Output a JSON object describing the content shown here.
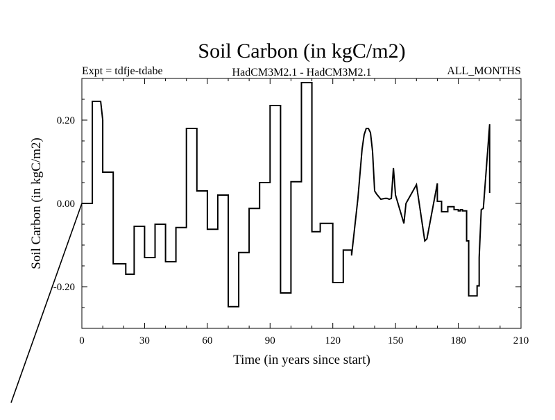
{
  "chart_data": {
    "type": "line",
    "title": "Soil Carbon (in kgC/m2)",
    "subtitle_left": "Expt = tdfje-tdabe",
    "subtitle_center": "HadCM3M2.1 - HadCM3M2.1",
    "subtitle_right": "ALL_MONTHS",
    "xlabel": "Time (in years since start)",
    "ylabel": "Soil Carbon (in kgC/m2)",
    "xlim": [
      0,
      210
    ],
    "ylim": [
      -0.3,
      0.3
    ],
    "xticks": [
      0,
      30,
      60,
      90,
      120,
      150,
      180,
      210
    ],
    "xtick_labels": [
      "0",
      "30",
      "60",
      "90",
      "120",
      "150",
      "180",
      "210"
    ],
    "yticks": [
      -0.2,
      0.0,
      0.2
    ],
    "ytick_labels": [
      "-0.20",
      "0.00",
      "0.20"
    ],
    "series": [
      {
        "name": "Soil Carbon",
        "x": [
          0,
          4,
          5,
          5,
          9,
          10,
          10,
          15,
          15,
          21,
          21,
          25,
          25,
          30,
          30,
          35,
          35,
          40,
          40,
          45,
          45,
          50,
          50,
          55,
          55,
          60,
          60,
          65,
          65,
          70,
          70,
          75,
          75,
          80,
          80,
          85,
          85,
          90,
          90,
          95,
          95,
          100,
          100,
          105,
          105,
          110,
          110,
          114,
          114,
          120,
          120,
          125,
          125,
          129,
          129,
          132,
          132,
          134,
          135,
          136,
          137,
          138,
          139,
          140,
          141,
          143,
          145,
          146,
          147,
          148,
          149,
          150,
          150,
          154,
          155,
          155,
          160,
          160,
          164,
          164,
          165,
          165,
          170,
          170,
          172,
          172,
          175,
          175,
          178,
          178,
          180,
          180,
          181,
          181,
          182,
          182,
          184,
          184,
          185,
          185,
          189,
          189,
          190,
          190,
          191,
          191,
          192,
          192,
          195,
          195,
          195
        ],
        "y": [
          0.0,
          0.0,
          0.0,
          0.245,
          0.245,
          0.2,
          0.075,
          0.075,
          -0.145,
          -0.145,
          -0.17,
          -0.17,
          -0.055,
          -0.055,
          -0.13,
          -0.13,
          -0.05,
          -0.05,
          -0.14,
          -0.14,
          -0.058,
          -0.058,
          0.18,
          0.18,
          0.03,
          0.03,
          -0.062,
          -0.062,
          0.02,
          0.02,
          -0.248,
          -0.248,
          -0.118,
          -0.118,
          -0.012,
          -0.012,
          0.05,
          0.05,
          0.235,
          0.235,
          -0.215,
          -0.215,
          0.052,
          0.052,
          0.29,
          0.29,
          -0.068,
          -0.068,
          -0.048,
          -0.048,
          -0.19,
          -0.19,
          -0.112,
          -0.112,
          -0.125,
          0.012,
          0.012,
          0.13,
          0.165,
          0.18,
          0.18,
          0.17,
          0.125,
          0.03,
          0.022,
          0.01,
          0.012,
          0.012,
          0.01,
          0.012,
          0.085,
          0.02,
          0.02,
          -0.048,
          0.0,
          0.0,
          0.045,
          0.045,
          -0.09,
          -0.09,
          -0.085,
          -0.085,
          0.048,
          0.005,
          0.005,
          -0.02,
          -0.02,
          -0.008,
          -0.008,
          -0.015,
          -0.015,
          -0.018,
          -0.018,
          -0.015,
          -0.015,
          -0.018,
          -0.018,
          -0.09,
          -0.09,
          -0.222,
          -0.222,
          -0.198,
          -0.198,
          -0.13,
          -0.015,
          -0.015,
          -0.012,
          -0.012,
          0.19,
          0.025,
          0.025
        ]
      }
    ]
  }
}
